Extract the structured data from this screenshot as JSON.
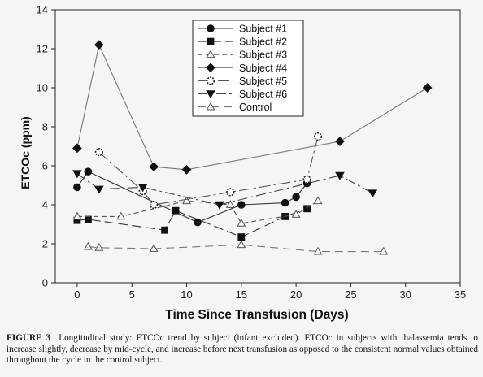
{
  "chart_data": {
    "type": "line",
    "xlabel": "Time Since Transfusion (Days)",
    "ylabel": "ETCOc (ppm)",
    "xlim": [
      -2,
      35
    ],
    "ylim": [
      0,
      14
    ],
    "xticks": [
      0,
      5,
      10,
      15,
      20,
      25,
      30,
      35
    ],
    "yticks": [
      0,
      2,
      4,
      6,
      8,
      10,
      12,
      14
    ],
    "grid": false,
    "legend_position": "top-center",
    "series": [
      {
        "name": "Subject #1",
        "marker": "circle",
        "fill": "#111",
        "dash": "",
        "color": "#333",
        "points": [
          [
            0,
            4.9
          ],
          [
            1,
            5.7
          ],
          [
            11,
            3.1
          ],
          [
            15,
            4.0
          ],
          [
            19,
            4.1
          ],
          [
            20,
            4.4
          ],
          [
            21,
            5.1
          ]
        ]
      },
      {
        "name": "Subject #2",
        "marker": "square",
        "fill": "#111",
        "dash": "12,5",
        "color": "#333",
        "points": [
          [
            0,
            3.2
          ],
          [
            1,
            3.25
          ],
          [
            8,
            2.7
          ],
          [
            9,
            3.7
          ],
          [
            15,
            2.35
          ],
          [
            19,
            3.4
          ],
          [
            21,
            3.8
          ]
        ]
      },
      {
        "name": "Subject #3",
        "marker": "triangle-up",
        "fill": "none",
        "dash": "6,4",
        "color": "#555",
        "points": [
          [
            0,
            3.4
          ],
          [
            4,
            3.4
          ],
          [
            10,
            4.2
          ],
          [
            14,
            4.0
          ],
          [
            15,
            3.05
          ],
          [
            20,
            3.5
          ],
          [
            22,
            4.2
          ]
        ]
      },
      {
        "name": "Subject #4",
        "marker": "diamond",
        "fill": "#111",
        "dash": "",
        "color": "#777",
        "points": [
          [
            0,
            6.9
          ],
          [
            2,
            12.2
          ],
          [
            7,
            5.95
          ],
          [
            10,
            5.8
          ],
          [
            24,
            7.25
          ],
          [
            32,
            10.0
          ]
        ]
      },
      {
        "name": "Subject #5",
        "marker": "hexagon",
        "fill": "#fff",
        "dash": "14,4,3,4",
        "color": "#555",
        "points": [
          [
            2,
            6.7
          ],
          [
            6,
            4.7
          ],
          [
            7,
            4.0
          ],
          [
            14,
            4.65
          ],
          [
            21,
            5.3
          ],
          [
            22,
            7.5
          ]
        ]
      },
      {
        "name": "Subject #6",
        "marker": "triangle-down",
        "fill": "#111",
        "dash": "12,4,3,4",
        "color": "#444",
        "points": [
          [
            0,
            5.6
          ],
          [
            2,
            4.8
          ],
          [
            6,
            4.9
          ],
          [
            13,
            4.0
          ],
          [
            24,
            5.5
          ],
          [
            27,
            4.6
          ]
        ]
      },
      {
        "name": "Control",
        "marker": "triangle-up",
        "fill": "none",
        "dash": "10,6",
        "color": "#777",
        "points": [
          [
            1,
            1.85
          ],
          [
            2,
            1.8
          ],
          [
            7,
            1.75
          ],
          [
            15,
            1.95
          ],
          [
            22,
            1.6
          ],
          [
            28,
            1.6
          ]
        ]
      }
    ]
  },
  "caption": {
    "label": "FIGURE 3",
    "text": "Longitudinal study: ETCOc trend by subject (infant excluded). ETCOc in subjects with thalassemia tends to increase slightly, decrease by mid-cycle, and increase before next transfusion as opposed to the consistent normal values obtained throughout the cycle in the control subject."
  }
}
